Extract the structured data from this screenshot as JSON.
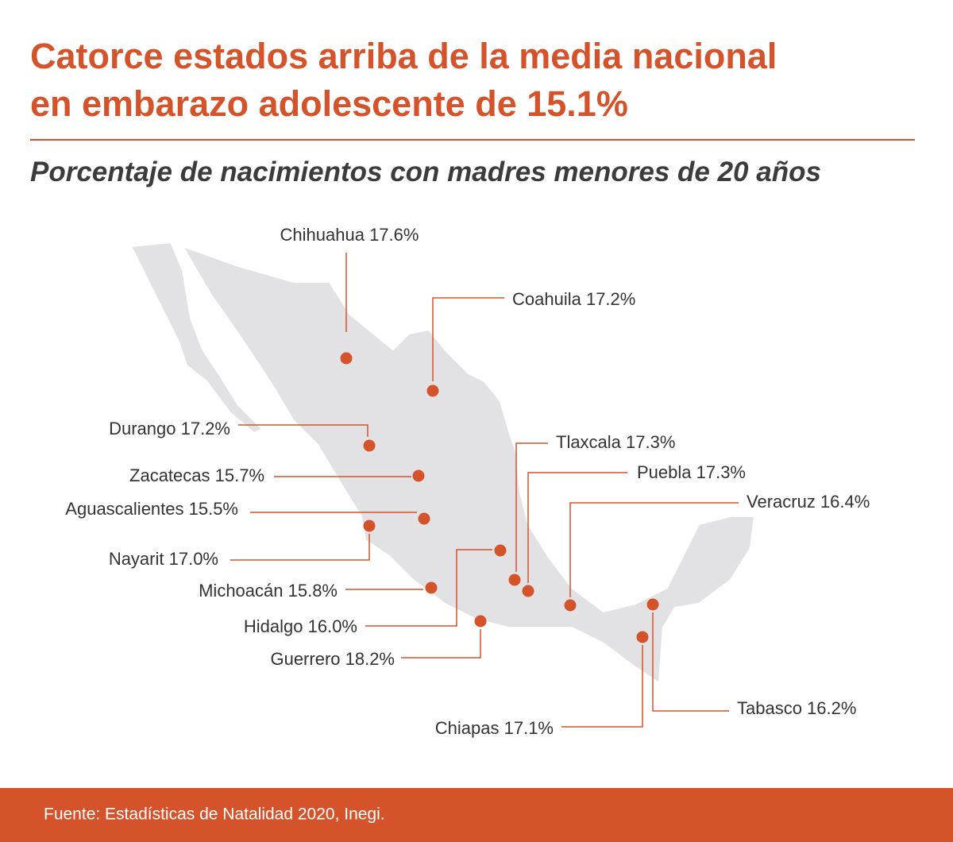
{
  "header": {
    "title_lines": [
      "Catorce estados arriba de la media nacional",
      "en embarazo adolescente de 15.1%"
    ],
    "subtitle": "Porcentaje de nacimientos con madres menores de 20 años"
  },
  "states": [
    {
      "label": "Chihuahua 17.6%"
    },
    {
      "label": "Coahuila 17.2%"
    },
    {
      "label": "Durango 17.2%"
    },
    {
      "label": "Zacatecas 15.7%"
    },
    {
      "label": "Aguascalientes 15.5%"
    },
    {
      "label": "Nayarit 17.0%"
    },
    {
      "label": "Michoacán 15.8%"
    },
    {
      "label": "Hidalgo 16.0%"
    },
    {
      "label": "Guerrero 18.2%"
    },
    {
      "label": "Tlaxcala 17.3%"
    },
    {
      "label": "Puebla 17.3%"
    },
    {
      "label": "Veracruz 16.4%"
    },
    {
      "label": "Tabasco 16.2%"
    },
    {
      "label": "Chiapas 17.1%"
    }
  ],
  "footer": {
    "source": "Fuente: Estadísticas de Natalidad 2020, Inegi."
  }
}
